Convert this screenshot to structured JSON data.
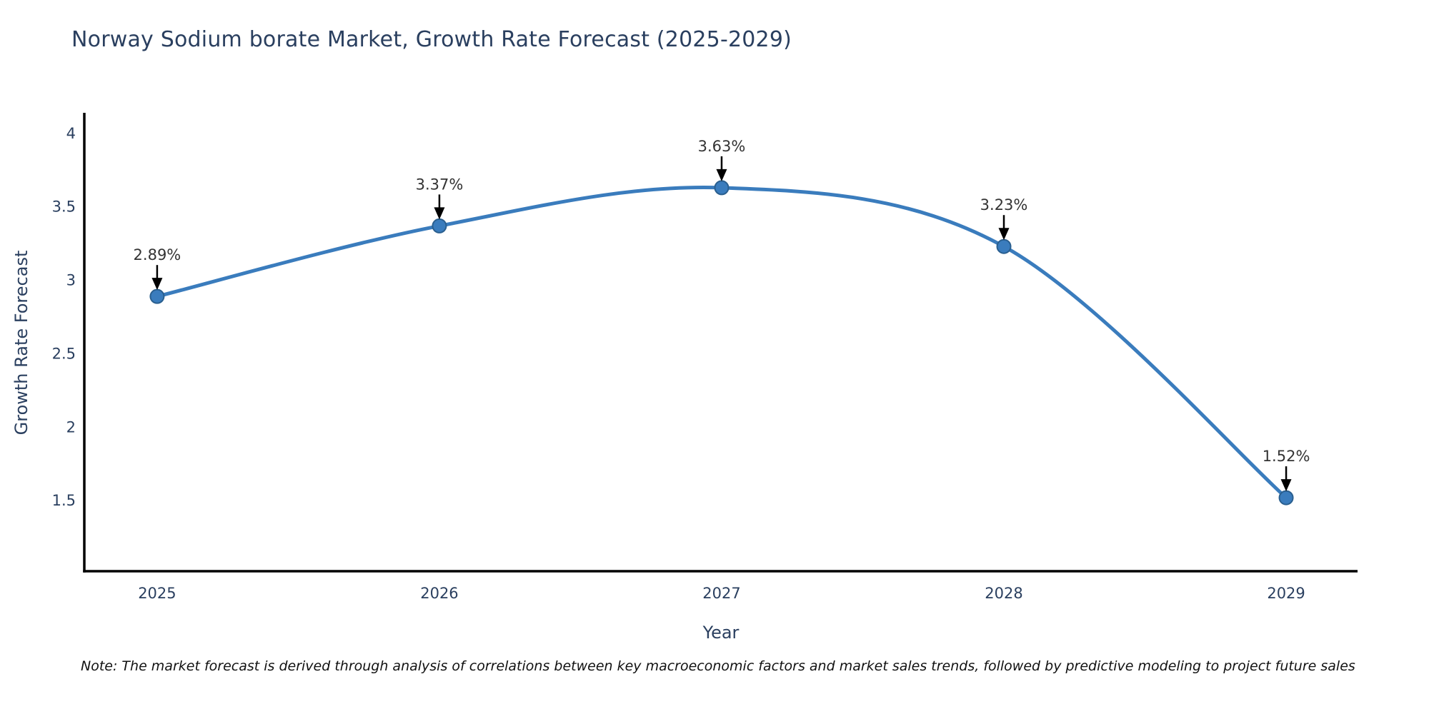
{
  "title": "Norway Sodium borate Market, Growth Rate Forecast (2025-2029)",
  "note": "Note: The market forecast is derived through analysis of correlations between key macroeconomic factors and market sales trends, followed by predictive modeling to project future sales",
  "chart_data": {
    "type": "line",
    "title": "Norway Sodium borate Market, Growth Rate Forecast (2025-2029)",
    "xlabel": "Year",
    "ylabel": "Growth Rate Forecast",
    "x": [
      2025,
      2026,
      2027,
      2028,
      2029
    ],
    "series": [
      {
        "name": "Growth Rate Forecast",
        "values": [
          2.89,
          3.37,
          3.63,
          3.23,
          1.52
        ]
      }
    ],
    "point_labels": [
      "2.89%",
      "3.37%",
      "3.63%",
      "3.23%",
      "1.52%"
    ],
    "xticks": [
      "2025",
      "2026",
      "2027",
      "2028",
      "2029"
    ],
    "yticks": [
      4,
      3.5,
      3,
      2.5,
      2,
      1.5
    ],
    "xlim": [
      2024.742,
      2029.253
    ],
    "ylim": [
      1.02,
      4.13
    ],
    "grid": false,
    "legend": "none",
    "line_shape": "spline",
    "colors": {
      "line": "#3a7cbd",
      "marker": "#3a7cbd",
      "marker_edge": "#2a5f8f",
      "axis": "#000000",
      "tick_text": "#2a3f5f",
      "annotation_text": "#333333",
      "arrow": "#000000"
    }
  }
}
